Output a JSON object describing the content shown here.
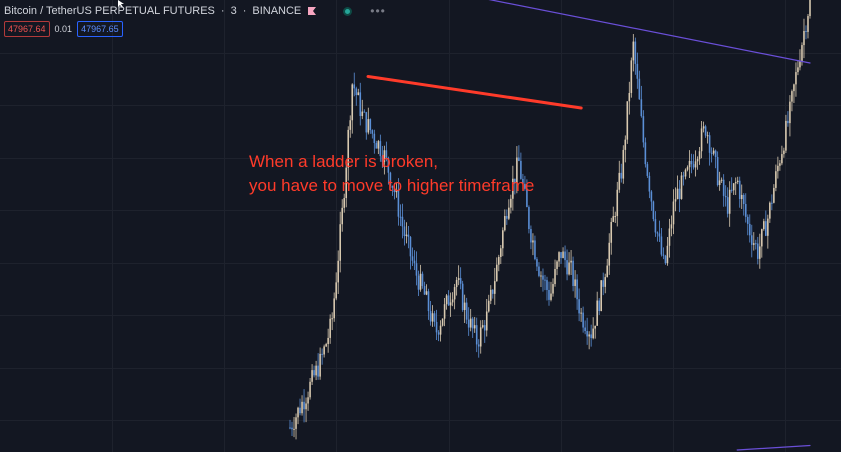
{
  "header": {
    "symbol": "Bitcoin / TetherUS PERPETUAL FUTURES",
    "interval": "3",
    "exchange": "BINANCE",
    "flag_icon": "pink-flag-icon",
    "status_icon": "market-open-dot-icon",
    "more_icon": "ellipsis-icon",
    "sep1": "·",
    "sep2": "·"
  },
  "trade": {
    "sell_price": "47967.64",
    "spread": "0.01",
    "buy_price": "47967.65"
  },
  "annotation": {
    "line1": "When a ladder is broken,",
    "line2": "you have to move to higher timeframe"
  },
  "colors": {
    "background": "#131722",
    "grid": "#1e222d",
    "candle_up": "#d8c9b0",
    "candle_down": "#5b8fd6",
    "annotation": "#ff3b2a",
    "trendline": "#6a4fd8"
  },
  "chart_data": {
    "type": "candlestick",
    "title": "Bitcoin / TetherUS PERPETUAL FUTURES · 3 · BINANCE",
    "xlabel": "",
    "ylabel": "",
    "grid": true,
    "description_series": [
      {
        "name": "price path (approx. close, relative units)",
        "x": [
          0,
          3,
          6,
          8,
          10,
          12,
          14,
          16,
          18,
          20,
          22,
          24,
          26,
          28,
          30,
          32,
          34,
          36,
          38,
          40,
          42,
          44,
          46,
          48,
          50,
          52,
          54,
          56,
          58,
          60,
          62,
          64,
          66,
          68,
          70,
          72,
          74,
          76,
          78,
          80,
          82,
          84,
          86,
          88,
          90,
          92,
          94,
          96,
          98,
          100
        ],
        "y": [
          5,
          12,
          20,
          28,
          52,
          82,
          74,
          70,
          66,
          58,
          48,
          40,
          34,
          26,
          32,
          38,
          30,
          24,
          30,
          42,
          56,
          64,
          50,
          40,
          34,
          44,
          40,
          30,
          26,
          36,
          50,
          64,
          90,
          68,
          52,
          40,
          56,
          60,
          66,
          72,
          62,
          54,
          60,
          50,
          44,
          52,
          64,
          74,
          88,
          100
        ]
      }
    ],
    "annotations": [
      {
        "type": "trendline",
        "label": "resistance (red)",
        "from": [
          15,
          83
        ],
        "to": [
          56,
          76
        ]
      },
      {
        "type": "trendline",
        "label": "descending line (purple)",
        "from": [
          -5,
          110
        ],
        "to": [
          100,
          86
        ]
      },
      {
        "type": "trendline",
        "label": "ascending line (purple)",
        "from": [
          86,
          0
        ],
        "to": [
          100,
          1
        ]
      }
    ]
  }
}
